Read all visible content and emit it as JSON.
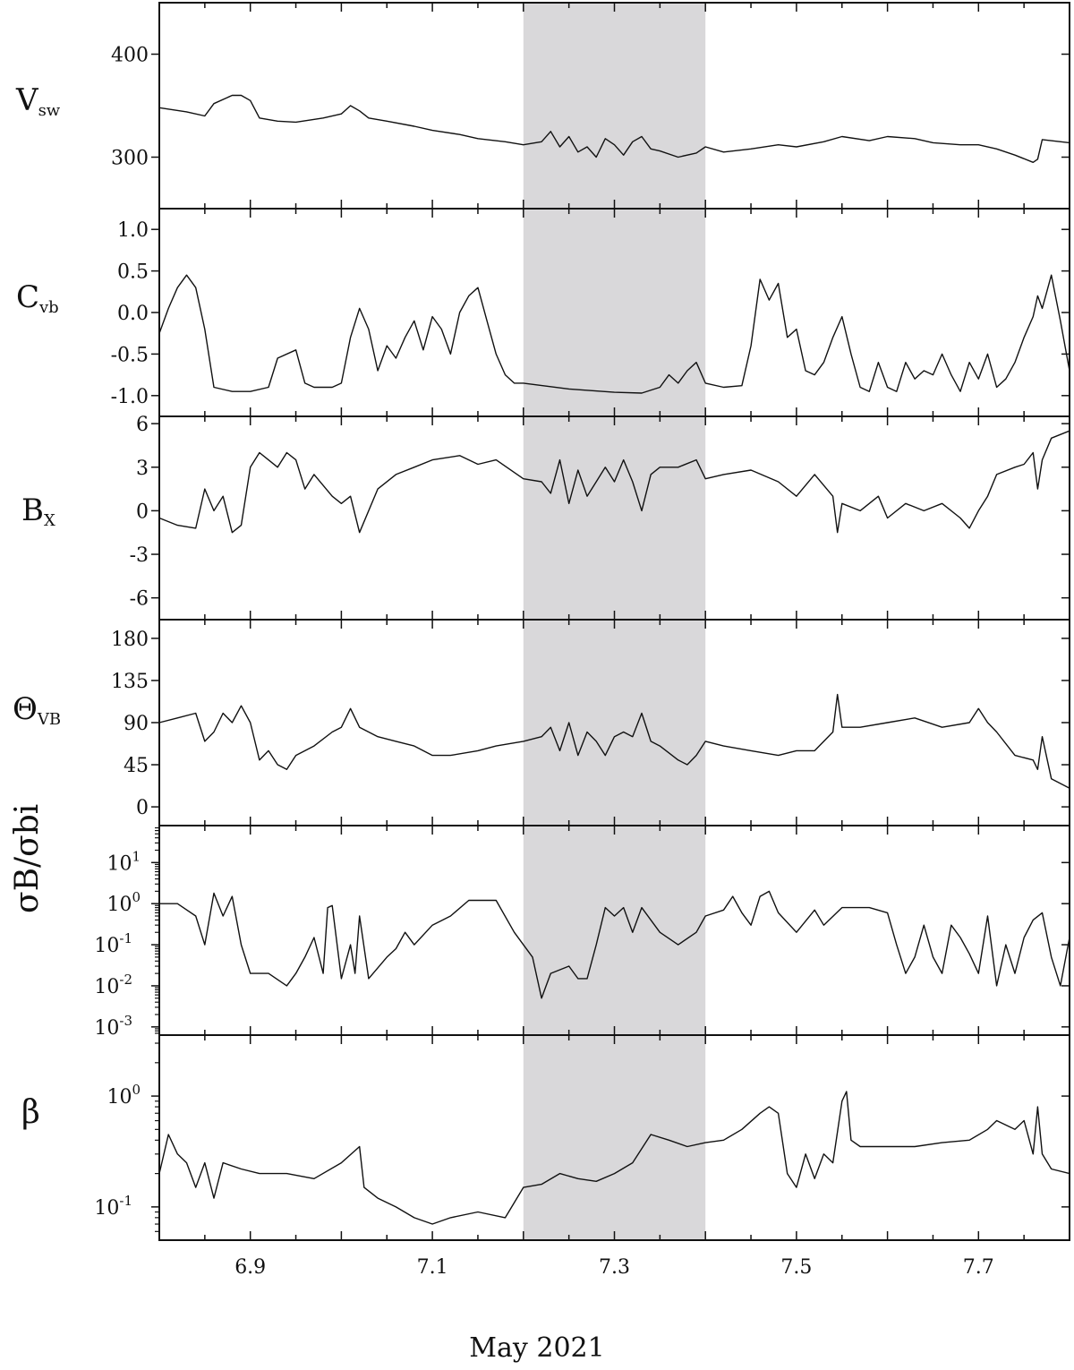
{
  "chart_data": {
    "type": "line",
    "xlabel": "May 2021",
    "xlim": [
      6.8,
      7.8
    ],
    "xticks": [
      "6.9",
      "7.1",
      "7.3",
      "7.5",
      "7.7"
    ],
    "shaded_interval": [
      7.2,
      7.4
    ],
    "line_color": "#111111",
    "shade_color": "#d9d8da",
    "panels": [
      {
        "id": "vsw",
        "ylabel_main": "V",
        "ylabel_sub": "sw",
        "yscale": "linear",
        "ylim": [
          250,
          450
        ],
        "yticks": [
          "400",
          "300"
        ],
        "series": {
          "x": [
            6.8,
            6.83,
            6.85,
            6.86,
            6.88,
            6.89,
            6.9,
            6.91,
            6.93,
            6.95,
            6.98,
            7.0,
            7.01,
            7.02,
            7.03,
            7.05,
            7.08,
            7.1,
            7.13,
            7.15,
            7.18,
            7.2,
            7.22,
            7.23,
            7.24,
            7.25,
            7.26,
            7.27,
            7.28,
            7.29,
            7.3,
            7.31,
            7.32,
            7.33,
            7.34,
            7.35,
            7.37,
            7.39,
            7.4,
            7.42,
            7.45,
            7.48,
            7.5,
            7.53,
            7.55,
            7.58,
            7.6,
            7.63,
            7.65,
            7.68,
            7.7,
            7.72,
            7.74,
            7.76,
            7.765,
            7.77,
            7.8
          ],
          "y": [
            348,
            344,
            340,
            352,
            360,
            360,
            355,
            338,
            335,
            334,
            338,
            342,
            350,
            345,
            338,
            335,
            330,
            326,
            322,
            318,
            315,
            312,
            315,
            325,
            310,
            320,
            305,
            310,
            300,
            318,
            312,
            302,
            315,
            320,
            308,
            306,
            300,
            304,
            310,
            305,
            308,
            312,
            310,
            315,
            320,
            316,
            320,
            318,
            314,
            312,
            312,
            308,
            302,
            295,
            298,
            317,
            314
          ]
        }
      },
      {
        "id": "cvb",
        "ylabel_main": "C",
        "ylabel_sub": "vb",
        "yscale": "linear",
        "ylim": [
          -1.25,
          1.25
        ],
        "yticks": [
          "1.0",
          "0.5",
          "0.0",
          "-0.5",
          "-1.0"
        ],
        "series": {
          "x": [
            6.8,
            6.81,
            6.82,
            6.83,
            6.84,
            6.85,
            6.86,
            6.88,
            6.9,
            6.92,
            6.93,
            6.95,
            6.96,
            6.97,
            6.99,
            7.0,
            7.01,
            7.02,
            7.03,
            7.04,
            7.05,
            7.06,
            7.07,
            7.08,
            7.09,
            7.1,
            7.11,
            7.12,
            7.13,
            7.14,
            7.15,
            7.16,
            7.17,
            7.18,
            7.19,
            7.2,
            7.25,
            7.3,
            7.33,
            7.35,
            7.36,
            7.37,
            7.38,
            7.39,
            7.4,
            7.42,
            7.44,
            7.45,
            7.46,
            7.47,
            7.48,
            7.49,
            7.5,
            7.51,
            7.52,
            7.53,
            7.54,
            7.55,
            7.56,
            7.57,
            7.58,
            7.59,
            7.6,
            7.61,
            7.62,
            7.63,
            7.64,
            7.65,
            7.66,
            7.67,
            7.68,
            7.69,
            7.7,
            7.71,
            7.72,
            7.73,
            7.74,
            7.75,
            7.76,
            7.765,
            7.77,
            7.78,
            7.79,
            7.8
          ],
          "y": [
            -0.25,
            0.05,
            0.3,
            0.45,
            0.3,
            -0.2,
            -0.9,
            -0.95,
            -0.95,
            -0.9,
            -0.55,
            -0.45,
            -0.85,
            -0.9,
            -0.9,
            -0.85,
            -0.3,
            0.05,
            -0.2,
            -0.7,
            -0.4,
            -0.55,
            -0.3,
            -0.1,
            -0.45,
            -0.05,
            -0.2,
            -0.5,
            0.0,
            0.2,
            0.3,
            -0.1,
            -0.5,
            -0.75,
            -0.85,
            -0.85,
            -0.92,
            -0.96,
            -0.97,
            -0.9,
            -0.75,
            -0.85,
            -0.7,
            -0.6,
            -0.85,
            -0.9,
            -0.88,
            -0.4,
            0.4,
            0.15,
            0.35,
            -0.3,
            -0.2,
            -0.7,
            -0.75,
            -0.6,
            -0.3,
            -0.05,
            -0.5,
            -0.9,
            -0.95,
            -0.6,
            -0.9,
            -0.95,
            -0.6,
            -0.8,
            -0.7,
            -0.75,
            -0.5,
            -0.75,
            -0.95,
            -0.6,
            -0.8,
            -0.5,
            -0.9,
            -0.8,
            -0.6,
            -0.3,
            -0.05,
            0.2,
            0.05,
            0.45,
            -0.1,
            -0.7
          ]
        }
      },
      {
        "id": "bx",
        "ylabel_main": "B",
        "ylabel_sub": "X",
        "yscale": "linear",
        "ylim": [
          -7.5,
          6.5
        ],
        "yticks": [
          "6",
          "3",
          "0",
          "-3",
          "-6"
        ],
        "series": {
          "x": [
            6.8,
            6.82,
            6.84,
            6.85,
            6.86,
            6.87,
            6.88,
            6.89,
            6.9,
            6.91,
            6.93,
            6.94,
            6.95,
            6.96,
            6.97,
            6.99,
            7.0,
            7.01,
            7.02,
            7.04,
            7.06,
            7.08,
            7.1,
            7.13,
            7.15,
            7.17,
            7.2,
            7.22,
            7.23,
            7.24,
            7.25,
            7.26,
            7.27,
            7.28,
            7.29,
            7.3,
            7.31,
            7.32,
            7.33,
            7.34,
            7.35,
            7.37,
            7.39,
            7.4,
            7.42,
            7.45,
            7.48,
            7.5,
            7.52,
            7.54,
            7.545,
            7.55,
            7.57,
            7.59,
            7.6,
            7.62,
            7.64,
            7.66,
            7.68,
            7.69,
            7.7,
            7.71,
            7.72,
            7.74,
            7.75,
            7.76,
            7.765,
            7.77,
            7.78,
            7.8
          ],
          "y": [
            -0.5,
            -1.0,
            -1.2,
            1.5,
            0.0,
            1.0,
            -1.5,
            -1.0,
            3.0,
            4.0,
            3.0,
            4.0,
            3.5,
            1.5,
            2.5,
            1.0,
            0.5,
            1.0,
            -1.5,
            1.5,
            2.5,
            3.0,
            3.5,
            3.8,
            3.2,
            3.5,
            2.2,
            2.0,
            1.2,
            3.5,
            0.5,
            2.8,
            1.0,
            2.0,
            3.0,
            2.0,
            3.5,
            2.0,
            0.0,
            2.5,
            3.0,
            3.0,
            3.5,
            2.2,
            2.5,
            2.8,
            2.0,
            1.0,
            2.5,
            1.0,
            -1.5,
            0.5,
            0.0,
            1.0,
            -0.5,
            0.5,
            0.0,
            0.5,
            -0.5,
            -1.2,
            0.0,
            1.0,
            2.5,
            3.0,
            3.2,
            4.0,
            1.5,
            3.5,
            5.0,
            5.5
          ]
        }
      },
      {
        "id": "theta",
        "ylabel_main": "Θ",
        "ylabel_sub": "VB",
        "yscale": "linear",
        "ylim": [
          -20,
          200
        ],
        "yticks": [
          "180",
          "135",
          "90",
          "45",
          "0"
        ],
        "series": {
          "x": [
            6.8,
            6.82,
            6.84,
            6.85,
            6.86,
            6.87,
            6.88,
            6.89,
            6.9,
            6.91,
            6.92,
            6.93,
            6.94,
            6.95,
            6.97,
            6.99,
            7.0,
            7.01,
            7.02,
            7.04,
            7.06,
            7.08,
            7.1,
            7.12,
            7.15,
            7.17,
            7.2,
            7.22,
            7.23,
            7.24,
            7.25,
            7.26,
            7.27,
            7.28,
            7.29,
            7.3,
            7.31,
            7.32,
            7.33,
            7.34,
            7.35,
            7.37,
            7.38,
            7.39,
            7.4,
            7.42,
            7.45,
            7.48,
            7.5,
            7.52,
            7.54,
            7.545,
            7.55,
            7.57,
            7.6,
            7.63,
            7.66,
            7.69,
            7.7,
            7.71,
            7.72,
            7.74,
            7.76,
            7.765,
            7.77,
            7.78,
            7.8
          ],
          "y": [
            90,
            95,
            100,
            70,
            80,
            100,
            90,
            108,
            90,
            50,
            60,
            45,
            40,
            55,
            65,
            80,
            85,
            105,
            85,
            75,
            70,
            65,
            55,
            55,
            60,
            65,
            70,
            75,
            85,
            60,
            90,
            55,
            80,
            70,
            55,
            75,
            80,
            75,
            100,
            70,
            65,
            50,
            45,
            55,
            70,
            65,
            60,
            55,
            60,
            60,
            80,
            120,
            85,
            85,
            90,
            95,
            85,
            90,
            105,
            90,
            80,
            55,
            50,
            40,
            75,
            30,
            20
          ]
        }
      },
      {
        "id": "sigma_ratio",
        "ylabel_main": "σB/σbi",
        "yscale": "log",
        "ylim_log10": [
          -3.2,
          1.9
        ],
        "yticks": [
          "10^1",
          "10^0",
          "10^-1",
          "10^-2",
          "10^-3"
        ],
        "series": {
          "x": [
            6.8,
            6.82,
            6.84,
            6.85,
            6.86,
            6.87,
            6.88,
            6.89,
            6.9,
            6.92,
            6.94,
            6.95,
            6.96,
            6.97,
            6.98,
            6.985,
            6.99,
            7.0,
            7.01,
            7.015,
            7.02,
            7.03,
            7.05,
            7.06,
            7.07,
            7.08,
            7.1,
            7.12,
            7.14,
            7.15,
            7.17,
            7.19,
            7.2,
            7.21,
            7.22,
            7.225,
            7.23,
            7.25,
            7.26,
            7.27,
            7.28,
            7.29,
            7.3,
            7.31,
            7.32,
            7.33,
            7.35,
            7.37,
            7.39,
            7.4,
            7.42,
            7.43,
            7.44,
            7.45,
            7.46,
            7.47,
            7.48,
            7.5,
            7.52,
            7.53,
            7.55,
            7.58,
            7.6,
            7.61,
            7.62,
            7.63,
            7.64,
            7.65,
            7.66,
            7.67,
            7.68,
            7.69,
            7.7,
            7.71,
            7.72,
            7.73,
            7.74,
            7.75,
            7.76,
            7.77,
            7.78,
            7.79,
            7.8
          ],
          "y": [
            1.0,
            1.0,
            0.5,
            0.1,
            1.8,
            0.5,
            1.5,
            0.1,
            0.02,
            0.02,
            0.01,
            0.02,
            0.05,
            0.15,
            0.02,
            0.8,
            0.9,
            0.015,
            0.1,
            0.02,
            0.5,
            0.015,
            0.05,
            0.08,
            0.2,
            0.1,
            0.3,
            0.5,
            1.2,
            1.2,
            1.2,
            0.2,
            0.1,
            0.05,
            0.005,
            0.01,
            0.02,
            0.03,
            0.015,
            0.015,
            0.1,
            0.8,
            0.5,
            0.8,
            0.2,
            0.8,
            0.2,
            0.1,
            0.2,
            0.5,
            0.7,
            1.5,
            0.6,
            0.3,
            1.5,
            2.0,
            0.6,
            0.2,
            0.7,
            0.3,
            0.8,
            0.8,
            0.6,
            0.1,
            0.02,
            0.05,
            0.3,
            0.05,
            0.02,
            0.3,
            0.15,
            0.06,
            0.02,
            0.5,
            0.01,
            0.1,
            0.02,
            0.15,
            0.4,
            0.6,
            0.05,
            0.01,
            0.15
          ]
        }
      },
      {
        "id": "beta",
        "ylabel_main": "β",
        "yscale": "log",
        "ylim_log10": [
          -1.3,
          0.55
        ],
        "yticks": [
          "10^0",
          "10^-1"
        ],
        "series": {
          "x": [
            6.8,
            6.81,
            6.82,
            6.83,
            6.84,
            6.85,
            6.86,
            6.87,
            6.89,
            6.91,
            6.94,
            6.97,
            7.0,
            7.02,
            7.025,
            7.04,
            7.06,
            7.08,
            7.1,
            7.12,
            7.15,
            7.18,
            7.2,
            7.22,
            7.24,
            7.26,
            7.28,
            7.3,
            7.32,
            7.34,
            7.36,
            7.38,
            7.4,
            7.42,
            7.44,
            7.46,
            7.47,
            7.48,
            7.49,
            7.5,
            7.51,
            7.52,
            7.53,
            7.54,
            7.55,
            7.555,
            7.56,
            7.57,
            7.6,
            7.63,
            7.66,
            7.69,
            7.71,
            7.72,
            7.74,
            7.75,
            7.76,
            7.765,
            7.77,
            7.78,
            7.8
          ],
          "y": [
            0.2,
            0.45,
            0.3,
            0.25,
            0.15,
            0.25,
            0.12,
            0.25,
            0.22,
            0.2,
            0.2,
            0.18,
            0.25,
            0.35,
            0.15,
            0.12,
            0.1,
            0.08,
            0.07,
            0.08,
            0.09,
            0.08,
            0.15,
            0.16,
            0.2,
            0.18,
            0.17,
            0.2,
            0.25,
            0.45,
            0.4,
            0.35,
            0.38,
            0.4,
            0.5,
            0.7,
            0.8,
            0.7,
            0.2,
            0.15,
            0.3,
            0.18,
            0.3,
            0.25,
            0.9,
            1.1,
            0.4,
            0.35,
            0.35,
            0.35,
            0.38,
            0.4,
            0.5,
            0.6,
            0.5,
            0.6,
            0.3,
            0.8,
            0.3,
            0.22,
            0.2
          ]
        }
      }
    ]
  }
}
